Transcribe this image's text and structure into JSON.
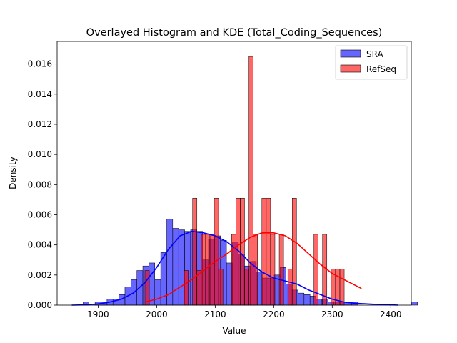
{
  "chart_data": {
    "type": "histogram+kde",
    "title": "Overlayed Histogram and KDE (Total_Coding_Sequences)",
    "xlabel": "Value",
    "ylabel": "Density",
    "xlim": [
      1830,
      2435
    ],
    "ylim": [
      0,
      0.0175
    ],
    "xticks": [
      1900,
      2000,
      2100,
      2200,
      2300,
      2400
    ],
    "yticks": [
      0.0,
      0.002,
      0.004,
      0.006,
      0.008,
      0.01,
      0.012,
      0.014,
      0.016
    ],
    "legend_position": "top-right",
    "grid": false,
    "series": [
      {
        "name": "SRA",
        "color": "#0000ff",
        "bin_start": 1854,
        "bin_width": 10.2,
        "densities": [
          0.0,
          0.0,
          0.0002,
          0.0,
          0.0002,
          0.0002,
          0.0004,
          0.0004,
          0.0007,
          0.0012,
          0.0017,
          0.0023,
          0.0026,
          0.0028,
          0.0017,
          0.0035,
          0.0057,
          0.0051,
          0.005,
          0.0049,
          0.005,
          0.0049,
          0.003,
          0.0044,
          0.0046,
          0.0043,
          0.0028,
          0.0042,
          0.0034,
          0.0026,
          0.0029,
          0.0022,
          0.0018,
          0.0018,
          0.002,
          0.0025,
          0.0014,
          0.001,
          0.0008,
          0.0007,
          0.0006,
          0.0004,
          0.0004,
          0.0002,
          0.0002,
          0.0002,
          0.0002,
          0.0002,
          0.0,
          0.0,
          0.0,
          0.0,
          0.0,
          0.0,
          0.0,
          0.0,
          0.0,
          0.0002
        ],
        "kde_x": [
          1855,
          1880,
          1900,
          1920,
          1940,
          1960,
          1980,
          2000,
          2020,
          2040,
          2060,
          2080,
          2100,
          2120,
          2140,
          2160,
          2180,
          2200,
          2220,
          2240,
          2260,
          2280,
          2300,
          2320,
          2340,
          2360,
          2380,
          2400,
          2413
        ],
        "kde_y": [
          0.0,
          2e-05,
          8e-05,
          0.0002,
          0.0004,
          0.0008,
          0.0015,
          0.0025,
          0.0037,
          0.0046,
          0.0049,
          0.0048,
          0.0046,
          0.0042,
          0.0036,
          0.0028,
          0.0022,
          0.0018,
          0.0016,
          0.0014,
          0.001,
          0.0007,
          0.0004,
          0.0002,
          0.00012,
          8e-05,
          4e-05,
          2e-05,
          0.0
        ]
      },
      {
        "name": "RefSeq",
        "color": "#ff0000",
        "bin_start": 1980,
        "bin_width": 7.4,
        "densities": [
          0.0023,
          0.0,
          0.0,
          0.0,
          0.0,
          0.0,
          0.0,
          0.0,
          0.0,
          0.0023,
          0.0,
          0.0071,
          0.0023,
          0.0047,
          0.0047,
          0.0047,
          0.0071,
          0.0024,
          0.0,
          0.0,
          0.0047,
          0.0071,
          0.0071,
          0.0024,
          0.0165,
          0.0047,
          0.0,
          0.0071,
          0.0071,
          0.0047,
          0.0,
          0.0047,
          0.0,
          0.0024,
          0.0071,
          0.0,
          0.0,
          0.0,
          0.0,
          0.0047,
          0.0,
          0.0047,
          0.0,
          0.0024,
          0.0024,
          0.0024
        ]
      }
    ],
    "refseq_kde": {
      "x": [
        1980,
        2000,
        2020,
        2040,
        2060,
        2080,
        2100,
        2120,
        2140,
        2160,
        2180,
        2200,
        2220,
        2240,
        2260,
        2280,
        2300,
        2320,
        2340,
        2350
      ],
      "y": [
        0.0002,
        0.0004,
        0.0007,
        0.0012,
        0.0017,
        0.0023,
        0.0029,
        0.0034,
        0.004,
        0.0045,
        0.0048,
        0.0048,
        0.0046,
        0.0041,
        0.0034,
        0.0027,
        0.0021,
        0.0017,
        0.0013,
        0.0011
      ]
    }
  }
}
